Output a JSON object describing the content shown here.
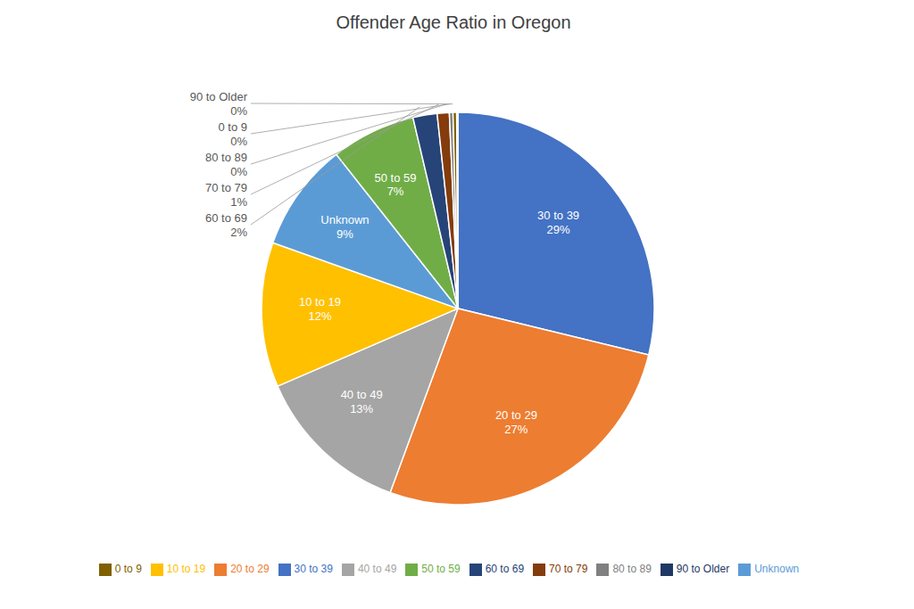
{
  "chart_data": {
    "type": "pie",
    "title": "Offender Age Ratio in Oregon",
    "categories": [
      "30 to 39",
      "20 to 29",
      "40 to 49",
      "10 to 19",
      "Unknown",
      "50 to 59",
      "60 to 69",
      "70 to 79",
      "80 to 89",
      "0 to 9",
      "90 to Older"
    ],
    "values": [
      29,
      27,
      13,
      12,
      9,
      7,
      2,
      1,
      0.3,
      0.3,
      0.1
    ],
    "value_labels": [
      "29%",
      "27%",
      "13%",
      "12%",
      "9%",
      "7%",
      "2%",
      "1%",
      "0%",
      "0%",
      "0%"
    ],
    "colors": [
      "#4472C4",
      "#ED7D31",
      "#A5A5A5",
      "#FFC000",
      "#5B9BD5",
      "#70AD47",
      "#264478",
      "#843C0C",
      "#808080",
      "#806000",
      "#1F3864"
    ],
    "data_labels": true,
    "legend": "bottom"
  }
}
